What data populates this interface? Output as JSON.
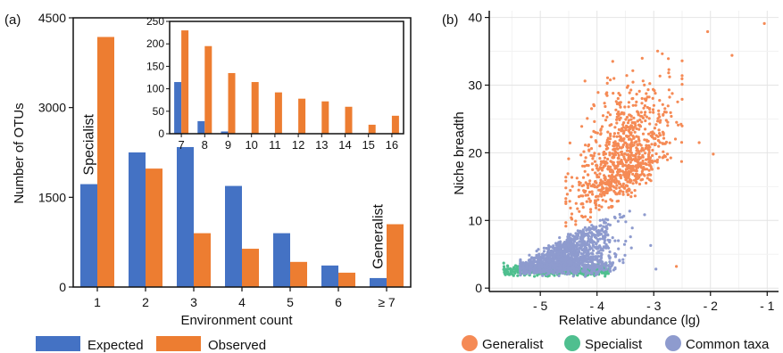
{
  "colors": {
    "expected": "#4472C4",
    "observed": "#ED7D31",
    "generalist": "#F58A55",
    "specialist": "#4FBF8F",
    "common": "#8E9BCE"
  },
  "chart_data": [
    {
      "type": "bar",
      "panel_label": "(a)",
      "xlabel": "Environment count",
      "ylabel": "Number of OTUs",
      "categories": [
        "1",
        "2",
        "3",
        "4",
        "5",
        "6",
        "≥ 7"
      ],
      "ylim": [
        0,
        4500
      ],
      "yticks": [
        "0",
        "1500",
        "3000",
        "4500"
      ],
      "series": [
        {
          "name": "Expected",
          "values": [
            1720,
            2250,
            2340,
            1690,
            900,
            360,
            150
          ]
        },
        {
          "name": "Observed",
          "values": [
            4180,
            1980,
            900,
            640,
            420,
            240,
            1050
          ]
        }
      ],
      "annotations": [
        "Specialist",
        "Generalist"
      ],
      "legend": [
        "Expected",
        "Observed"
      ],
      "legend_placement": "bottom",
      "grid": false,
      "inset": {
        "type": "bar",
        "categories": [
          "7",
          "8",
          "9",
          "10",
          "11",
          "12",
          "13",
          "14",
          "15",
          "16"
        ],
        "ylim": [
          0,
          250
        ],
        "yticks": [
          "0",
          "50",
          "100",
          "150",
          "200",
          "250"
        ],
        "series": [
          {
            "name": "Expected",
            "values": [
              115,
              28,
              5,
              0,
              0,
              0,
              0,
              0,
              0,
              0
            ]
          },
          {
            "name": "Observed",
            "values": [
              230,
              195,
              135,
              115,
              92,
              78,
              72,
              60,
              20,
              40
            ]
          }
        ]
      }
    },
    {
      "type": "scatter",
      "panel_label": "(b)",
      "xlabel": "Relative abundance (lg)",
      "ylabel": "Niche breadth",
      "xlim": [
        -5.9,
        -0.8
      ],
      "ylim": [
        -0.5,
        41
      ],
      "xticks": [
        "- 5",
        "- 4",
        "- 3",
        "- 2",
        "- 1"
      ],
      "yticks": [
        "0",
        "10",
        "20",
        "30",
        "40"
      ],
      "grid": true,
      "legend": [
        "Generalist",
        "Specialist",
        "Common taxa"
      ],
      "legend_placement": "bottom",
      "series": [
        {
          "name": "Generalist",
          "x": [
            -4.3,
            -4.0,
            -3.8,
            -3.6,
            -3.5,
            -3.3,
            -3.2,
            -3.0,
            -2.8,
            -2.6,
            -2.05,
            -1.6,
            -1.05
          ],
          "y": [
            11,
            13,
            16,
            18,
            22,
            25,
            28,
            31,
            34,
            36,
            38,
            34.5,
            39
          ]
        },
        {
          "name": "Specialist",
          "x": [
            -5.6,
            -5.3,
            -5.0,
            -4.7,
            -4.4,
            -4.1,
            -3.9
          ],
          "y": [
            2.8,
            2.5,
            2.3,
            2.2,
            2.3,
            2.6,
            3.0
          ]
        },
        {
          "name": "Common taxa",
          "x": [
            -5.2,
            -4.9,
            -4.6,
            -4.3,
            -4.0,
            -3.7,
            -3.4,
            -3.0
          ],
          "y": [
            3,
            4,
            5.5,
            6.5,
            7,
            8,
            9,
            8
          ]
        }
      ]
    }
  ]
}
